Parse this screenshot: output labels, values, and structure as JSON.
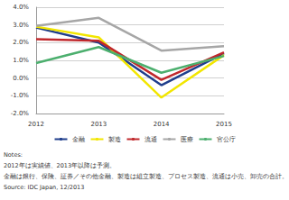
{
  "chart_data": {
    "type": "line",
    "categories": [
      "2012",
      "2013",
      "2014",
      "2015"
    ],
    "series": [
      {
        "name": "金融",
        "color": "#1f3e8c",
        "values": [
          2.85,
          2.0,
          -0.4,
          1.4
        ]
      },
      {
        "name": "製造",
        "color": "#f2e600",
        "values": [
          2.9,
          2.3,
          -1.1,
          1.3
        ]
      },
      {
        "name": "流通",
        "color": "#c0282c",
        "values": [
          2.2,
          2.1,
          -0.1,
          1.45
        ]
      },
      {
        "name": "医療",
        "color": "#a6a6a6",
        "values": [
          2.95,
          3.4,
          1.55,
          1.8
        ]
      },
      {
        "name": "官公庁",
        "color": "#4caf6e",
        "values": [
          0.85,
          1.75,
          0.3,
          1.25
        ]
      }
    ],
    "ylim": [
      -2,
      4
    ],
    "yticks": [
      {
        "value": -2,
        "label": "-2.0%"
      },
      {
        "value": -1,
        "label": "-1.0%"
      },
      {
        "value": 0,
        "label": "0.0%"
      },
      {
        "value": 1,
        "label": "1.0%"
      },
      {
        "value": 2,
        "label": "2.0%"
      },
      {
        "value": 3,
        "label": "3.0%"
      },
      {
        "value": 4,
        "label": "4.0%"
      }
    ],
    "grid": true,
    "legend": "bottom",
    "annotations": [
      "Notes:",
      "2012年は実績値、2013年以降は予測。",
      "金融は銀行、保険、証券／その他金融、製造は組立製造、プロセス製造、流通は小売、卸売の合計。",
      "Source: IDC Japan, 12/2013"
    ]
  }
}
